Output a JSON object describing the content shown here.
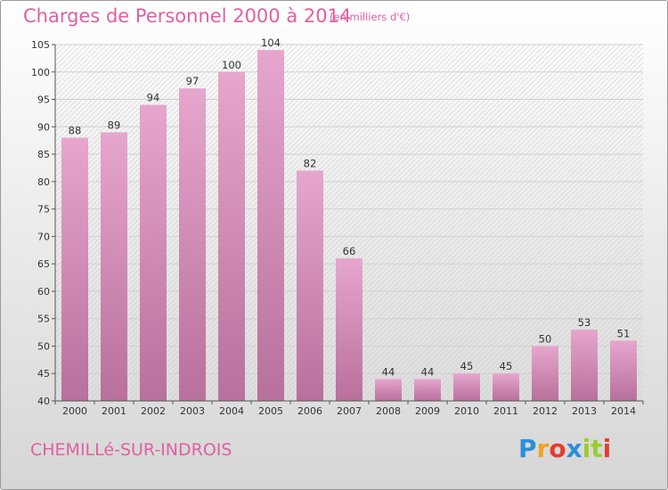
{
  "title": "Charges de Personnel 2000 à 2014",
  "subtitle": "(en milliers d'€)",
  "commune": "CHEMILLé-SUR-INDROIS",
  "logo": {
    "letters": [
      "P",
      "r",
      "o",
      "x",
      "i",
      "t",
      "i"
    ],
    "colors": [
      "#2c8fd9",
      "#f2a21c",
      "#e83b2f",
      "#2c8fd9",
      "#9ccc2f",
      "#9ccc2f",
      "#e83b2f"
    ]
  },
  "colors": {
    "bar_top": "#e6a6cd",
    "bar_bottom": "#b8709c",
    "title": "#e060a0"
  },
  "chart_data": {
    "type": "bar",
    "categories": [
      "2000",
      "2001",
      "2002",
      "2003",
      "2004",
      "2005",
      "2006",
      "2007",
      "2008",
      "2009",
      "2010",
      "2011",
      "2012",
      "2013",
      "2014"
    ],
    "values": [
      88,
      89,
      94,
      97,
      100,
      104,
      82,
      66,
      44,
      44,
      45,
      45,
      50,
      53,
      51
    ],
    "data_labels": [
      "88",
      "89",
      "94",
      "97",
      "100",
      "104",
      "82",
      "66",
      "44",
      "44",
      "45",
      "45",
      "50",
      "53",
      "51"
    ],
    "title": "Charges de Personnel 2000 à 2014",
    "xlabel": "",
    "ylabel": "",
    "ylim": [
      40,
      105
    ],
    "yticks": [
      40,
      45,
      50,
      55,
      60,
      65,
      70,
      75,
      80,
      85,
      90,
      95,
      100,
      105
    ],
    "grid": true
  }
}
